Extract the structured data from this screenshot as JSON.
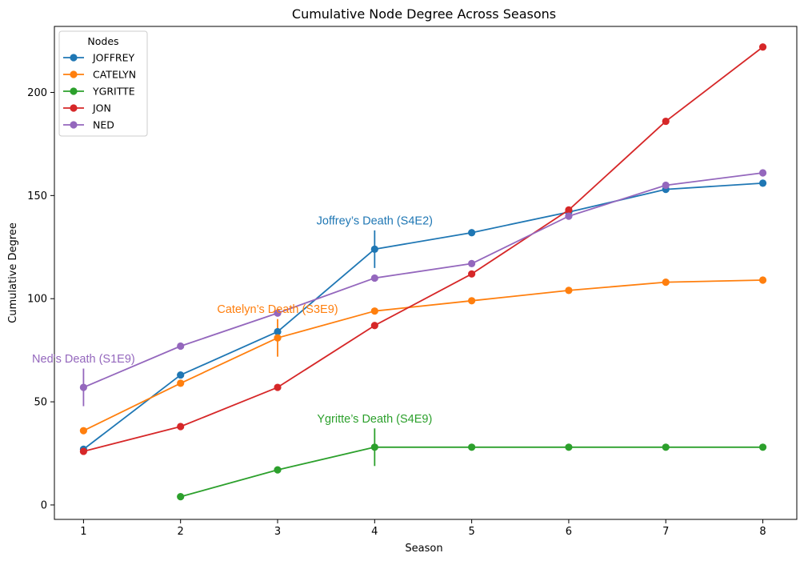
{
  "chart_data": {
    "type": "line",
    "title": "Cumulative Node Degree Across Seasons",
    "xlabel": "Season",
    "ylabel": "Cumulative Degree",
    "x": [
      1,
      2,
      3,
      4,
      5,
      6,
      7,
      8
    ],
    "xlim": [
      0.7,
      8.35
    ],
    "ylim": [
      -7,
      232
    ],
    "yticks": [
      0,
      50,
      100,
      150,
      200
    ],
    "grid": false,
    "legend": {
      "title": "Nodes",
      "placement": "top-left"
    },
    "series": [
      {
        "name": "JOFFREY",
        "color": "#1f77b4",
        "values": [
          27,
          63,
          84,
          124,
          132,
          142,
          153,
          156
        ]
      },
      {
        "name": "CATELYN",
        "color": "#ff7f0e",
        "values": [
          36,
          59,
          81,
          94,
          99,
          104,
          108,
          109
        ]
      },
      {
        "name": "YGRITTE",
        "color": "#2ca02c",
        "values": [
          null,
          4,
          17,
          28,
          28,
          28,
          28,
          28
        ]
      },
      {
        "name": "JON",
        "color": "#d62728",
        "values": [
          26,
          38,
          57,
          87,
          112,
          143,
          186,
          222
        ]
      },
      {
        "name": "NED",
        "color": "#9467bd",
        "values": [
          57,
          77,
          93,
          110,
          117,
          140,
          155,
          161
        ]
      }
    ],
    "annotations": [
      {
        "text": "Ned’s Death (S1E9)",
        "x": 1,
        "y": 57,
        "color": "#9467bd"
      },
      {
        "text": "Catelyn’s Death (S3E9)",
        "x": 3,
        "y": 81,
        "color": "#ff7f0e"
      },
      {
        "text": "Joffrey’s Death (S4E2)",
        "x": 4,
        "y": 124,
        "color": "#1f77b4"
      },
      {
        "text": "Ygritte’s Death (S4E9)",
        "x": 4,
        "y": 28,
        "color": "#2ca02c"
      }
    ]
  }
}
